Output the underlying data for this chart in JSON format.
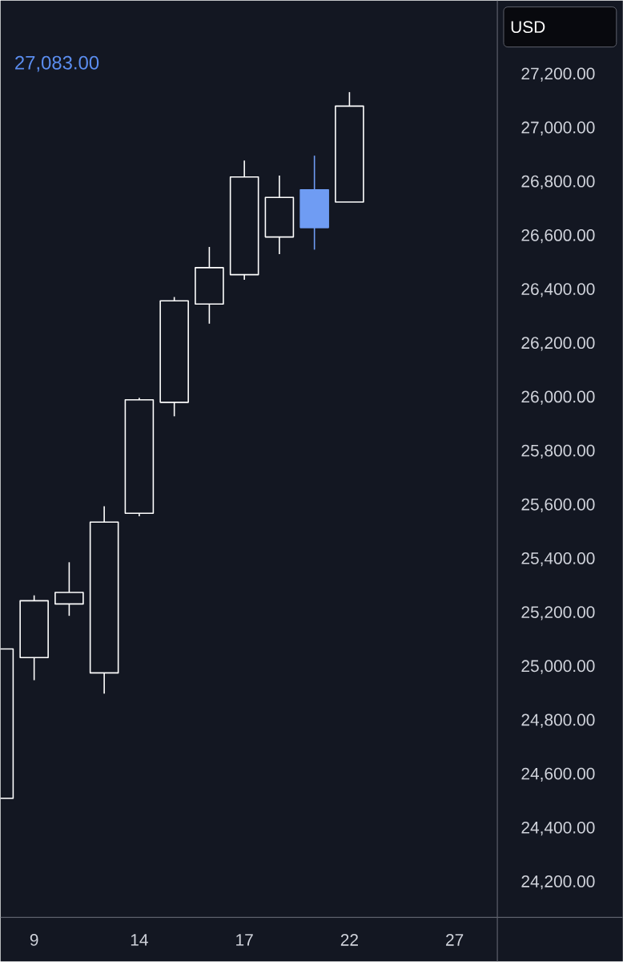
{
  "chart_data": {
    "type": "candlestick",
    "categories": [
      null,
      "9",
      null,
      null,
      "14",
      null,
      null,
      "17",
      null,
      null,
      "22",
      null,
      null,
      "27"
    ],
    "ohlc": [
      [
        24512,
        25067,
        24512,
        25067
      ],
      [
        25035,
        25266,
        24951,
        25246
      ],
      [
        25234,
        25389,
        25190,
        25277
      ],
      [
        24978,
        25597,
        24901,
        25538
      ],
      [
        25571,
        26000,
        25560,
        25992
      ],
      [
        25983,
        26374,
        25931,
        26360
      ],
      [
        26348,
        26560,
        26275,
        26483
      ],
      [
        26457,
        26881,
        26438,
        26820
      ],
      [
        26597,
        26825,
        26533,
        26744
      ],
      [
        26772,
        26899,
        26550,
        26632
      ],
      [
        26727,
        27135,
        26727,
        27083
      ],
      null,
      null,
      null
    ],
    "colors": [
      "#ffffff",
      "#ffffff",
      "#ffffff",
      "#ffffff",
      "#ffffff",
      "#ffffff",
      "#ffffff",
      "#ffffff",
      "#ffffff",
      "#6f9cf3",
      "#ffffff",
      null,
      null,
      null
    ],
    "ylim": [
      24070,
      27475
    ],
    "yticks": [
      {
        "value": 24200,
        "label": "24,200.00"
      },
      {
        "value": 24400,
        "label": "24,400.00"
      },
      {
        "value": 24600,
        "label": "24,600.00"
      },
      {
        "value": 24800,
        "label": "24,800.00"
      },
      {
        "value": 25000,
        "label": "25,000.00"
      },
      {
        "value": 25200,
        "label": "25,200.00"
      },
      {
        "value": 25400,
        "label": "25,400.00"
      },
      {
        "value": 25600,
        "label": "25,600.00"
      },
      {
        "value": 25800,
        "label": "25,800.00"
      },
      {
        "value": 26000,
        "label": "26,000.00"
      },
      {
        "value": 26200,
        "label": "26,200.00"
      },
      {
        "value": 26400,
        "label": "26,400.00"
      },
      {
        "value": 26600,
        "label": "26,600.00"
      },
      {
        "value": 26800,
        "label": "26,800.00"
      },
      {
        "value": 27000,
        "label": "27,000.00"
      },
      {
        "value": 27200,
        "label": "27,200.00"
      }
    ],
    "annotations": [
      "27,083.00",
      "USD"
    ]
  }
}
